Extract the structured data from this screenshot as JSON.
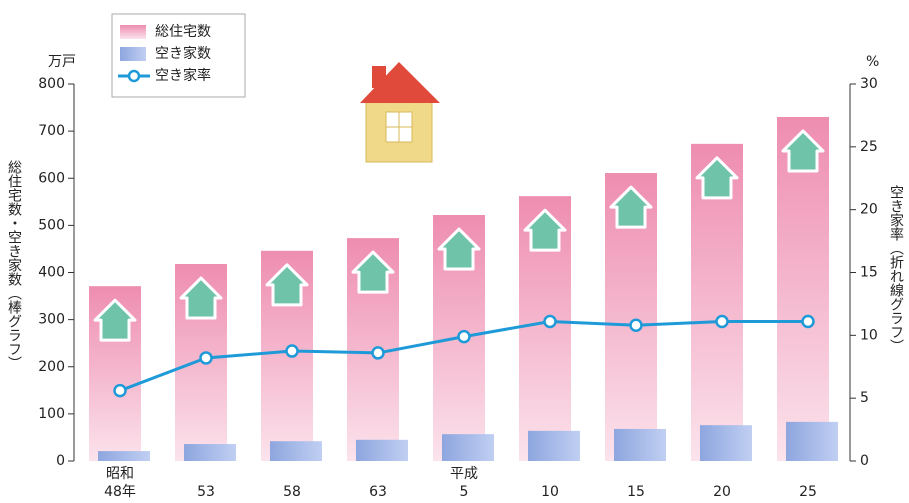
{
  "chart_data": {
    "type": "bar",
    "categories": [
      "昭和\n48年",
      "53",
      "58",
      "63",
      "平成\n5",
      "10",
      "15",
      "20",
      "25"
    ],
    "series": [
      {
        "name": "総住宅数",
        "color": "#ee8db0",
        "values": [
          371,
          418,
          446,
          473,
          522,
          562,
          611,
          673,
          730
        ]
      },
      {
        "name": "空き家数",
        "color": "#8ea6df",
        "values": [
          21,
          36,
          42,
          45,
          57,
          64,
          68,
          76,
          83
        ]
      },
      {
        "name": "空き家率",
        "type": "line",
        "axis": "y2",
        "color": "#1e9ad8",
        "values": [
          5.6,
          8.2,
          8.75,
          8.6,
          9.9,
          11.1,
          10.8,
          11.1,
          11.1
        ]
      }
    ],
    "ylim": [
      0,
      800
    ],
    "yticks": [
      0,
      100,
      200,
      300,
      400,
      500,
      600,
      700,
      800
    ],
    "y2lim": [
      0,
      30
    ],
    "y2ticks": [
      0,
      5,
      10,
      15,
      20,
      25,
      30
    ],
    "y_unit": "万戸",
    "y2_unit": "%",
    "ylabel": "総住宅数・空き家数（棒グラフ）",
    "y2label": "空き家率（折れ線グラフ）"
  }
}
